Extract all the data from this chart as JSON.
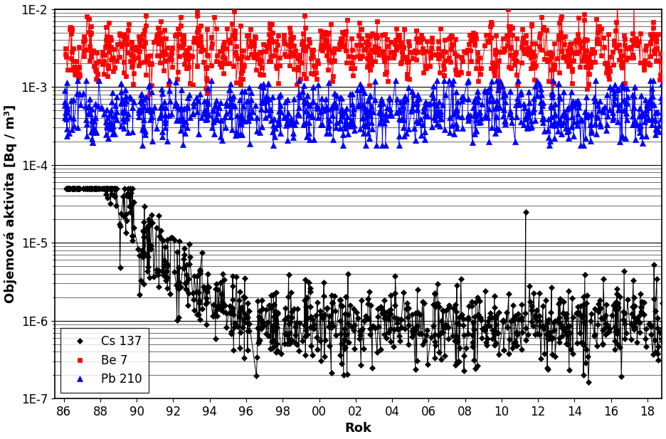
{
  "xlabel": "Rok",
  "ylabel": "Objemová aktivita [Bq / m³]",
  "legend_labels": [
    "Cs 137",
    "Be 7",
    "Pb 210"
  ],
  "cs137_color": "black",
  "be7_color": "red",
  "pb210_color": "blue",
  "cs137_marker": "D",
  "be7_marker": "s",
  "pb210_marker": "^",
  "marker_size_cs": 4.5,
  "marker_size_be": 5.0,
  "marker_size_pb": 5.5,
  "line_width": 0.7,
  "font_size_axis": 13,
  "font_size_tick": 12,
  "font_size_legend": 12,
  "ylim": [
    1e-07,
    0.01
  ],
  "xlim_low": 85.5,
  "xlim_high": 118.8
}
